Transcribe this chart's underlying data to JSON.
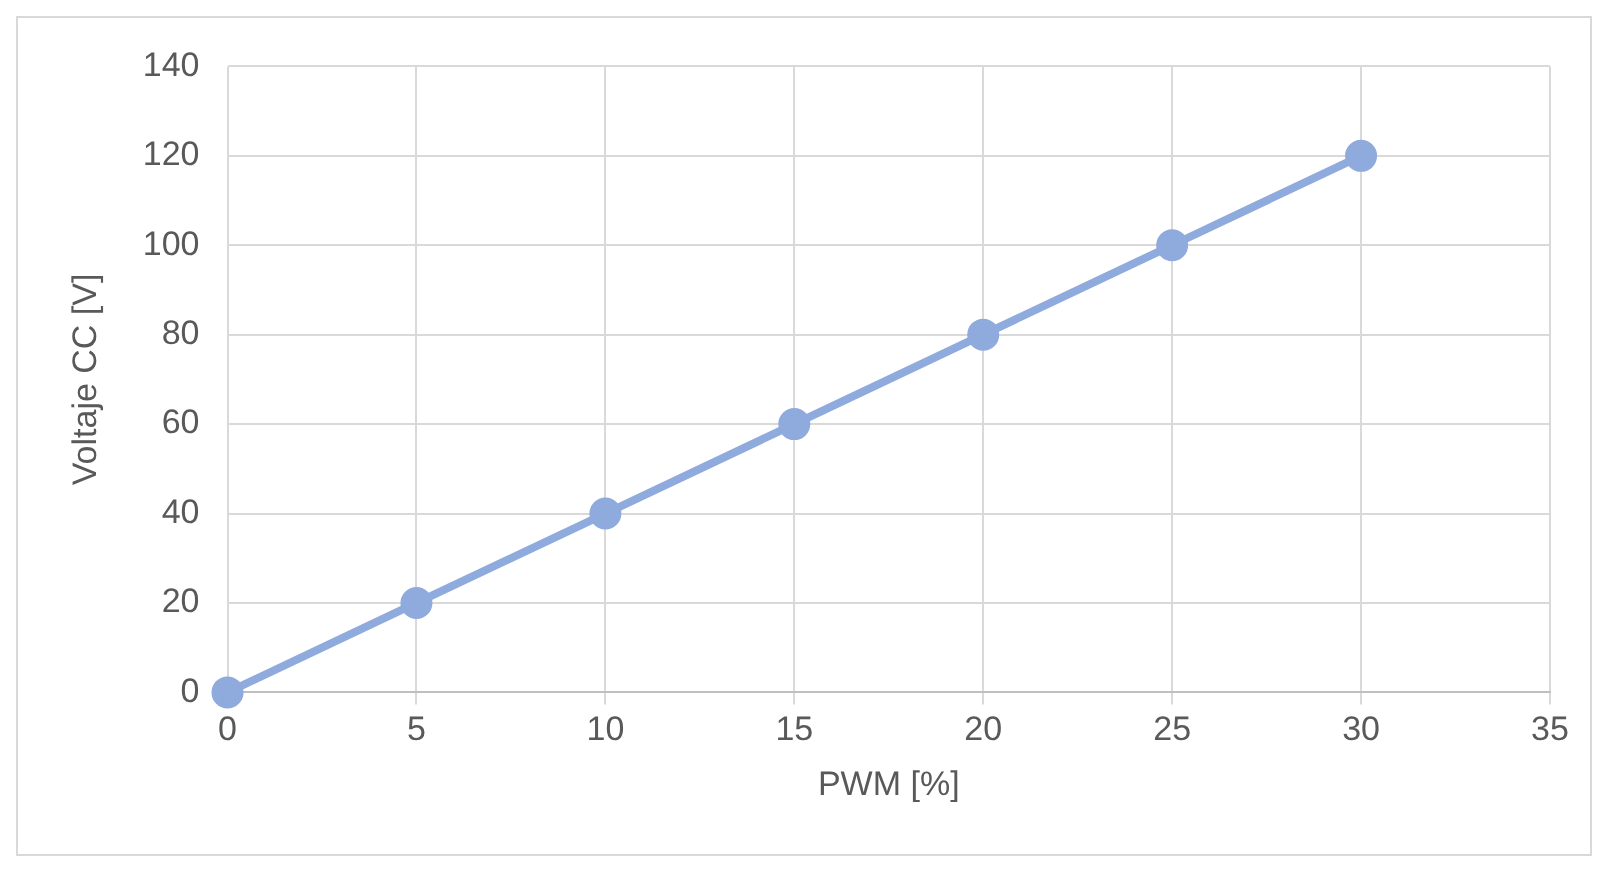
{
  "chart_data": {
    "type": "line",
    "xlabel": "PWM [%]",
    "ylabel": "Voltaje CC [V]",
    "x": [
      0,
      5,
      10,
      15,
      20,
      25,
      30
    ],
    "series": [
      {
        "color": "#8faadc",
        "values": [
          0,
          20,
          40,
          60,
          80,
          100,
          120
        ]
      }
    ],
    "xlim": [
      0,
      35
    ],
    "xticks": [
      0,
      5,
      10,
      15,
      20,
      25,
      30,
      35
    ],
    "ylim": [
      0,
      140
    ],
    "yticks": [
      0,
      20,
      40,
      60,
      80,
      100,
      120,
      140
    ],
    "grid": true,
    "legend": false,
    "marker": "circle",
    "line_style": "solid"
  }
}
